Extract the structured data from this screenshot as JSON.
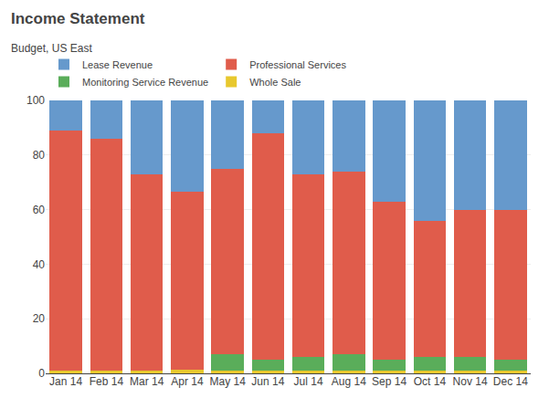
{
  "chart_data": {
    "type": "bar",
    "title": "Income Statement",
    "subtitle": "Budget, US East",
    "stacked": true,
    "categories": [
      "Jan 14",
      "Feb 14",
      "Mar 14",
      "Apr 14",
      "May 14",
      "Jun 14",
      "Jul 14",
      "Aug 14",
      "Sep 14",
      "Oct 14",
      "Nov 14",
      "Dec 14"
    ],
    "series": [
      {
        "name": "Whole Sale",
        "color": "#e8c82e",
        "values": [
          1,
          1,
          1,
          1.5,
          1,
          1,
          1,
          1,
          1,
          1,
          1,
          1
        ]
      },
      {
        "name": "Monitoring Service Revenue",
        "color": "#5aad5a",
        "values": [
          0,
          0,
          0,
          0,
          6,
          4,
          5,
          6,
          4,
          5,
          5,
          4
        ]
      },
      {
        "name": "Professional Services",
        "color": "#e05c4b",
        "values": [
          88,
          85,
          72,
          65,
          68,
          83,
          67,
          67,
          58,
          50,
          54,
          55
        ]
      },
      {
        "name": "Lease Revenue",
        "color": "#6699cc",
        "values": [
          11,
          14,
          27,
          33.5,
          25,
          12,
          27,
          26,
          37,
          44,
          40,
          40
        ]
      }
    ],
    "ylim": [
      0,
      100
    ],
    "yticks": [
      0,
      20,
      40,
      60,
      80,
      100
    ],
    "grid": true,
    "legend": "top"
  }
}
